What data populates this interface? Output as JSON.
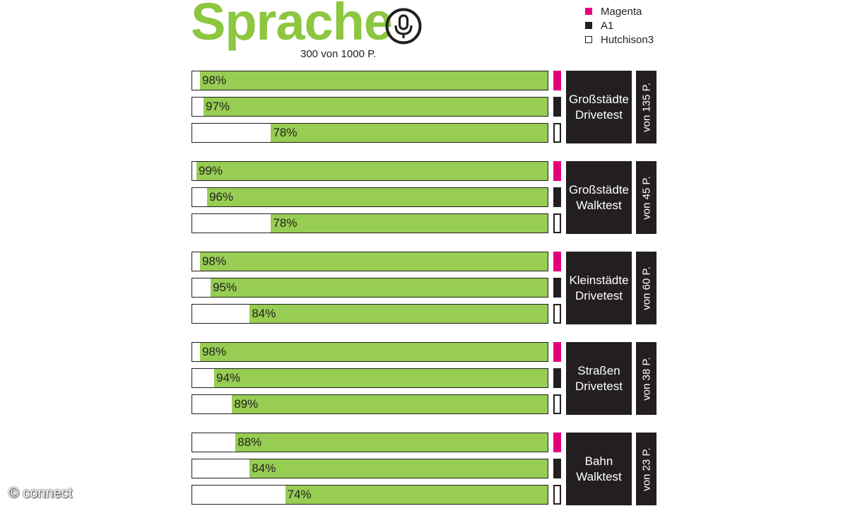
{
  "title": "Sprache",
  "subtitle": "300 von 1000 P.",
  "copyright": "© connect",
  "colors": {
    "Magenta": "#e6007e",
    "A1": "#231f20",
    "Hutchison3": "#ffffff",
    "bar_fill": "#96cd52",
    "title": "#8dc63f"
  },
  "legend": [
    {
      "name": "Magenta",
      "style": "filled-magenta"
    },
    {
      "name": "A1",
      "style": "filled-black"
    },
    {
      "name": "Hutchison3",
      "style": "outline"
    }
  ],
  "chart_data": {
    "type": "bar",
    "orientation": "horizontal",
    "title": "Sprache",
    "subtitle": "300 von 1000 P.",
    "xlim": [
      0,
      100
    ],
    "series_names": [
      "Magenta",
      "A1",
      "Hutchison3"
    ],
    "groups": [
      {
        "category": "Großstädte\nDrivetest",
        "points": "von 135 P.",
        "values": [
          98,
          97,
          78
        ],
        "labels": [
          "98%",
          "97%",
          "78%"
        ]
      },
      {
        "category": "Großstädte\nWalktest",
        "points": "von 45 P.",
        "values": [
          99,
          96,
          78
        ],
        "labels": [
          "99%",
          "96%",
          "78%"
        ]
      },
      {
        "category": "Kleinstädte\nDrivetest",
        "points": "von 60 P.",
        "values": [
          98,
          95,
          84
        ],
        "labels": [
          "98%",
          "95%",
          "84%"
        ]
      },
      {
        "category": "Straßen\nDrivetest",
        "points": "von 38 P.",
        "values": [
          98,
          94,
          89
        ],
        "labels": [
          "98%",
          "94%",
          "89%"
        ]
      },
      {
        "category": "Bahn\nWalktest",
        "points": "von 23 P.",
        "values": [
          88,
          84,
          74
        ],
        "labels": [
          "88%",
          "84%",
          "74%"
        ]
      }
    ]
  }
}
